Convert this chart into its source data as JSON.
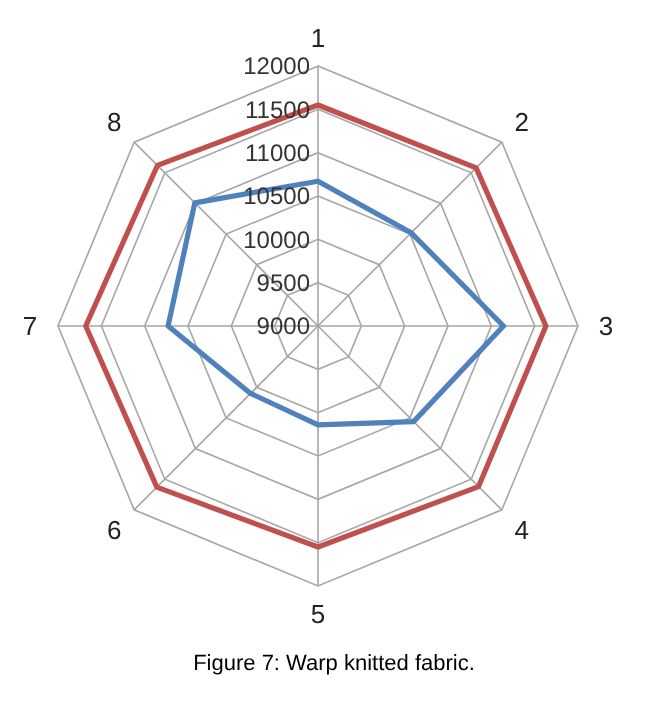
{
  "chart_data": {
    "type": "radar",
    "categories": [
      "1",
      "2",
      "3",
      "4",
      "5",
      "6",
      "7",
      "8"
    ],
    "series": [
      {
        "color": "#c0504d",
        "values": [
          11550,
          11580,
          11630,
          11620,
          11550,
          11630,
          11680,
          11620
        ]
      },
      {
        "color": "#4f81bd",
        "values": [
          10670,
          10520,
          11140,
          10560,
          10140,
          10100,
          10730,
          11010
        ]
      }
    ],
    "ylim": [
      9000,
      12000
    ],
    "yticks": [
      9000,
      9500,
      10000,
      10500,
      11000,
      11500,
      12000
    ],
    "grid": true,
    "annotations": [
      "Figure 7: Warp knitted fabric."
    ]
  }
}
